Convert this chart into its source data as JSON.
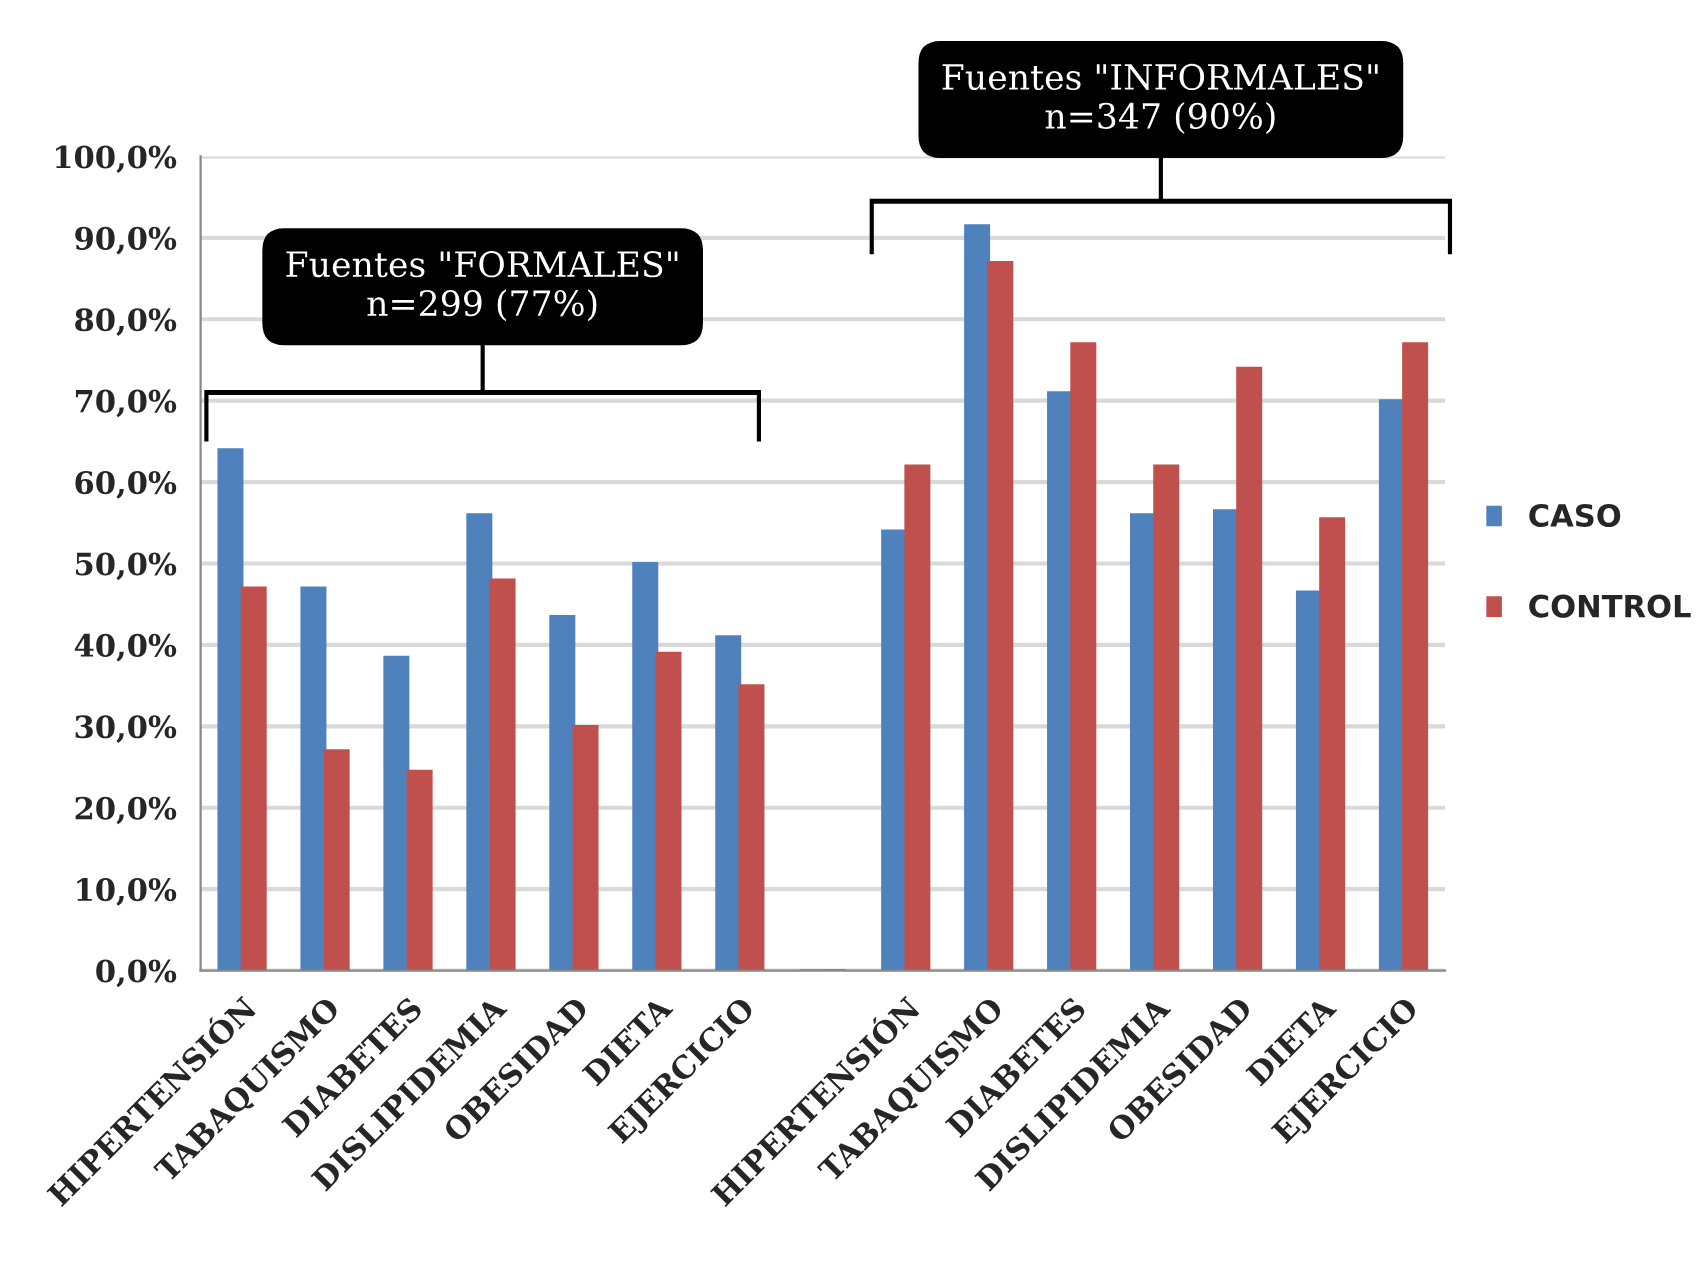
{
  "chart_data": {
    "type": "bar",
    "categories": [
      "HIPERTENSIÓN",
      "TABAQUISMO",
      "DIABETES",
      "DISLIPIDEMIA",
      "OBESIDAD",
      "DIETA",
      "EJERCICIO",
      null,
      "HIPERTENSIÓN",
      "TABAQUISMO",
      "DIABETES",
      "DISLIPIDEMIA",
      "OBESIDAD",
      "DIETA",
      "EJERCICIO"
    ],
    "series": [
      {
        "name": "CASO",
        "color": "#4f81bd",
        "values": [
          64,
          47,
          38.5,
          56,
          43.5,
          50,
          41,
          0,
          54,
          91.5,
          71,
          56,
          56.5,
          46.5,
          70
        ]
      },
      {
        "name": "CONTROL",
        "color": "#c0504d",
        "values": [
          47,
          27,
          24.5,
          48,
          30,
          39,
          35,
          0,
          62,
          87,
          77,
          62,
          74,
          55.5,
          77
        ]
      }
    ],
    "ylim": [
      0,
      100
    ],
    "yticks": [
      {
        "value": 0,
        "label": "0,0%"
      },
      {
        "value": 10,
        "label": "10,0%"
      },
      {
        "value": 20,
        "label": "20,0%"
      },
      {
        "value": 30,
        "label": "30,0%"
      },
      {
        "value": 40,
        "label": "40,0%"
      },
      {
        "value": 50,
        "label": "50,0%"
      },
      {
        "value": 60,
        "label": "60,0%"
      },
      {
        "value": 70,
        "label": "70,0%"
      },
      {
        "value": 80,
        "label": "80,0%"
      },
      {
        "value": 90,
        "label": "90,0%"
      },
      {
        "value": 100,
        "label": "100,0%"
      }
    ],
    "grid": "y",
    "legend": "right",
    "annotations": [
      "Fuentes \"FORMALES\"\nn=299 (77%)",
      "Fuentes \"INFORMALES\"\nn=347 (90%)"
    ]
  }
}
